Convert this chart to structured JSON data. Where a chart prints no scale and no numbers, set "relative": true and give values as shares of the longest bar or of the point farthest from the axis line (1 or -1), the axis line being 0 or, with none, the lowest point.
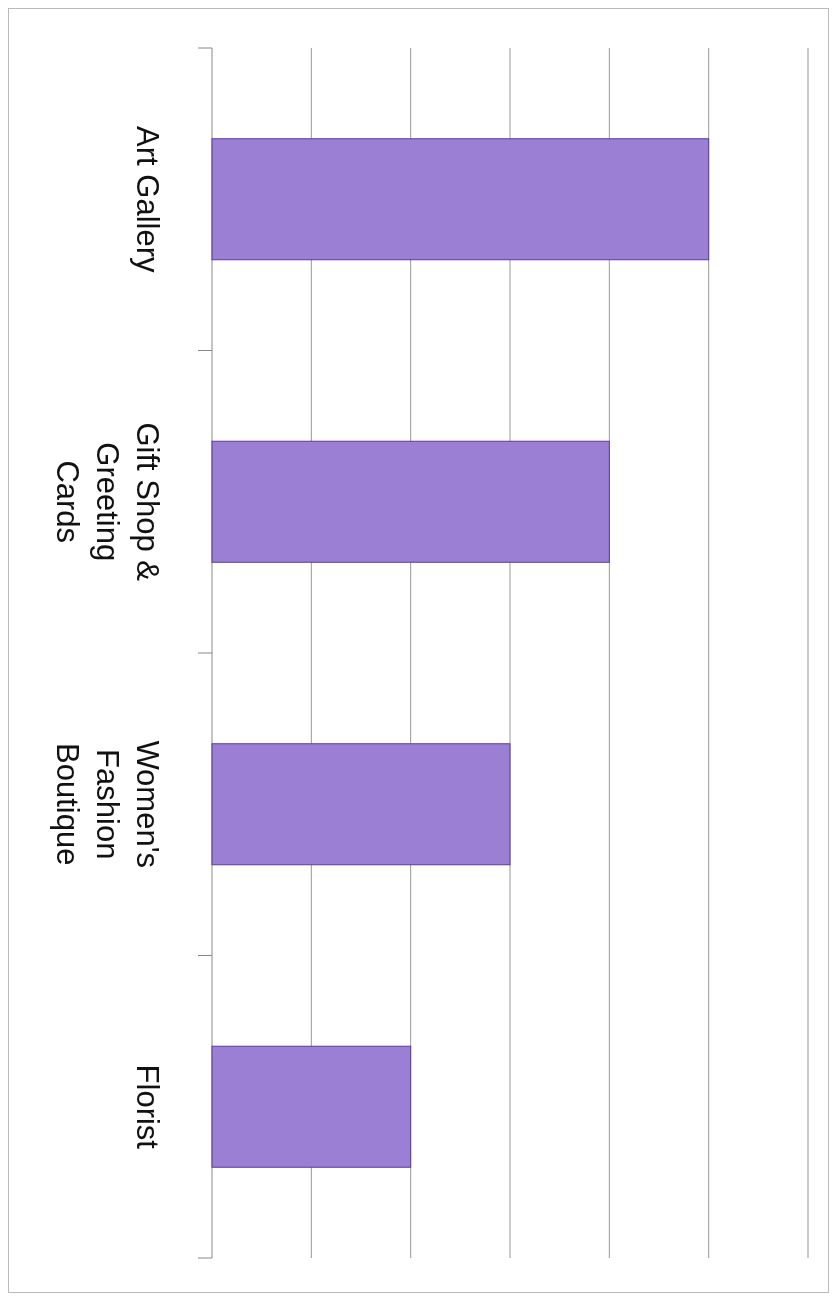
{
  "chart_data": {
    "type": "bar",
    "orientation": "horizontal",
    "relative": true,
    "grid": "x",
    "categories": [
      "Art Gallery",
      "Gift Shop & Greeting Cards",
      "Women's Fashion Boutique",
      "Florist"
    ],
    "values": [
      1,
      0.8,
      0.6,
      0.4
    ],
    "color": "#9b7fd4"
  }
}
